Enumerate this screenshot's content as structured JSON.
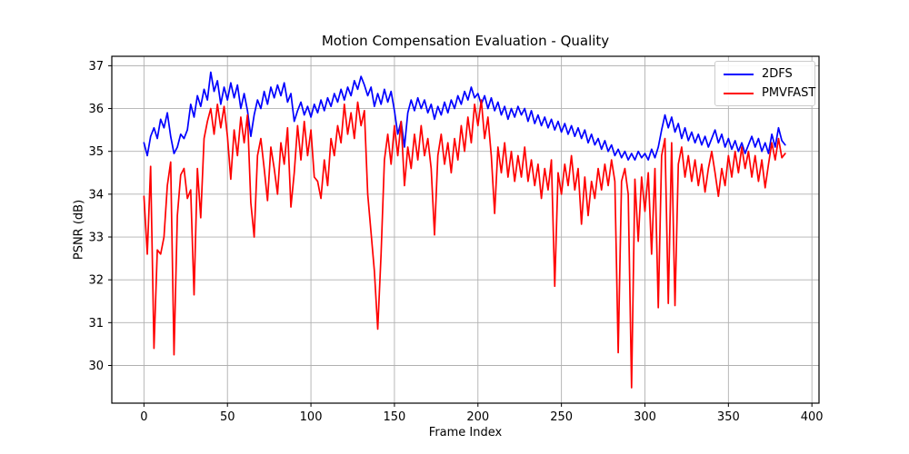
{
  "title": "Motion Compensation Evaluation - Quality",
  "chart_data": {
    "type": "line",
    "title": "Motion Compensation Evaluation - Quality",
    "xlabel": "Frame Index",
    "ylabel": "PSNR (dB)",
    "xlim": [
      -19.25,
      404.25
    ],
    "ylim": [
      29.12,
      37.22
    ],
    "xticks": [
      0,
      50,
      100,
      150,
      200,
      250,
      300,
      350,
      400
    ],
    "yticks": [
      30,
      31,
      32,
      33,
      34,
      35,
      36,
      37
    ],
    "grid": true,
    "grid_color": "#b0b0b0",
    "legend_position": "upper right",
    "x": [
      0,
      2,
      4,
      6,
      8,
      10,
      12,
      14,
      16,
      18,
      20,
      22,
      24,
      26,
      28,
      30,
      32,
      34,
      36,
      38,
      40,
      42,
      44,
      46,
      48,
      50,
      52,
      54,
      56,
      58,
      60,
      62,
      64,
      66,
      68,
      70,
      72,
      74,
      76,
      78,
      80,
      82,
      84,
      86,
      88,
      90,
      92,
      94,
      96,
      98,
      100,
      102,
      104,
      106,
      108,
      110,
      112,
      114,
      116,
      118,
      120,
      122,
      124,
      126,
      128,
      130,
      132,
      134,
      136,
      138,
      140,
      142,
      144,
      146,
      148,
      150,
      152,
      154,
      156,
      158,
      160,
      162,
      164,
      166,
      168,
      170,
      172,
      174,
      176,
      178,
      180,
      182,
      184,
      186,
      188,
      190,
      192,
      194,
      196,
      198,
      200,
      202,
      204,
      206,
      208,
      210,
      212,
      214,
      216,
      218,
      220,
      222,
      224,
      226,
      228,
      230,
      232,
      234,
      236,
      238,
      240,
      242,
      244,
      246,
      248,
      250,
      252,
      254,
      256,
      258,
      260,
      262,
      264,
      266,
      268,
      270,
      272,
      274,
      276,
      278,
      280,
      282,
      284,
      286,
      288,
      290,
      292,
      294,
      296,
      298,
      300,
      302,
      304,
      306,
      308,
      310,
      312,
      314,
      316,
      318,
      320,
      322,
      324,
      326,
      328,
      330,
      332,
      334,
      336,
      338,
      340,
      342,
      344,
      346,
      348,
      350,
      352,
      354,
      356,
      358,
      360,
      362,
      364,
      366,
      368,
      370,
      372,
      374,
      376,
      378,
      380,
      382,
      384
    ],
    "series": [
      {
        "name": "2DFS",
        "color": "#0000ff",
        "values": [
          35.2,
          34.9,
          35.35,
          35.55,
          35.3,
          35.75,
          35.55,
          35.9,
          35.35,
          34.95,
          35.1,
          35.4,
          35.3,
          35.5,
          36.1,
          35.8,
          36.3,
          36.05,
          36.45,
          36.2,
          36.85,
          36.4,
          36.65,
          36.1,
          36.5,
          36.2,
          36.6,
          36.25,
          36.55,
          36.0,
          36.35,
          35.95,
          35.35,
          35.85,
          36.2,
          36.0,
          36.4,
          36.1,
          36.5,
          36.25,
          36.55,
          36.3,
          36.6,
          36.15,
          36.35,
          35.7,
          35.95,
          36.15,
          35.85,
          36.05,
          35.8,
          36.1,
          35.9,
          36.2,
          35.95,
          36.25,
          36.05,
          36.35,
          36.15,
          36.45,
          36.2,
          36.5,
          36.3,
          36.65,
          36.45,
          36.75,
          36.55,
          36.3,
          36.5,
          36.05,
          36.35,
          36.1,
          36.45,
          36.15,
          36.4,
          35.95,
          35.4,
          35.7,
          35.1,
          35.9,
          36.2,
          35.95,
          36.25,
          36.0,
          36.2,
          35.9,
          36.1,
          35.75,
          36.05,
          35.85,
          36.15,
          35.9,
          36.2,
          36.0,
          36.3,
          36.1,
          36.4,
          36.2,
          36.5,
          36.25,
          36.35,
          36.1,
          36.3,
          36.0,
          36.25,
          35.95,
          36.15,
          35.85,
          36.05,
          35.75,
          36.0,
          35.8,
          36.05,
          35.85,
          36.0,
          35.7,
          35.95,
          35.65,
          35.85,
          35.6,
          35.8,
          35.55,
          35.75,
          35.5,
          35.7,
          35.45,
          35.65,
          35.4,
          35.6,
          35.35,
          35.55,
          35.3,
          35.5,
          35.2,
          35.4,
          35.15,
          35.3,
          35.05,
          35.25,
          35.0,
          35.15,
          34.9,
          35.05,
          34.85,
          35.0,
          34.8,
          34.95,
          34.8,
          35.0,
          34.85,
          34.95,
          34.8,
          35.05,
          34.85,
          35.1,
          35.5,
          35.85,
          35.55,
          35.8,
          35.45,
          35.65,
          35.3,
          35.55,
          35.25,
          35.45,
          35.2,
          35.4,
          35.15,
          35.35,
          35.1,
          35.3,
          35.5,
          35.2,
          35.4,
          35.1,
          35.3,
          35.05,
          35.25,
          35.0,
          35.2,
          34.95,
          35.15,
          35.35,
          35.1,
          35.3,
          35.0,
          35.2,
          34.95,
          35.4,
          35.1,
          35.55,
          35.25,
          35.15
        ]
      },
      {
        "name": "PMVFAST",
        "color": "#ff0000",
        "values": [
          33.95,
          32.6,
          34.65,
          30.4,
          32.7,
          32.6,
          33.0,
          34.2,
          34.75,
          30.25,
          33.5,
          34.45,
          34.6,
          33.9,
          34.1,
          31.65,
          34.6,
          33.45,
          35.3,
          35.7,
          36.0,
          35.4,
          36.1,
          35.55,
          36.05,
          35.35,
          34.35,
          35.5,
          34.9,
          35.8,
          35.2,
          35.85,
          33.8,
          33.0,
          34.9,
          35.3,
          34.6,
          33.85,
          35.1,
          34.6,
          34.0,
          35.2,
          34.7,
          35.55,
          33.7,
          34.5,
          35.6,
          34.8,
          35.7,
          34.9,
          35.5,
          34.4,
          34.3,
          33.9,
          34.8,
          34.2,
          35.3,
          34.9,
          35.6,
          35.2,
          36.1,
          35.4,
          35.9,
          35.3,
          36.15,
          35.6,
          35.95,
          34.0,
          33.1,
          32.2,
          30.85,
          32.6,
          34.8,
          35.4,
          34.7,
          35.6,
          34.9,
          35.7,
          34.2,
          35.1,
          34.6,
          35.4,
          34.8,
          35.6,
          34.9,
          35.3,
          34.6,
          33.05,
          34.9,
          35.4,
          34.7,
          35.2,
          34.5,
          35.3,
          34.8,
          35.6,
          35.0,
          35.8,
          35.2,
          36.1,
          35.6,
          36.2,
          35.3,
          35.8,
          34.9,
          33.55,
          35.1,
          34.5,
          35.2,
          34.4,
          35.0,
          34.3,
          34.9,
          34.4,
          35.1,
          34.3,
          34.8,
          34.2,
          34.7,
          33.9,
          34.6,
          34.1,
          34.8,
          31.85,
          34.5,
          34.0,
          34.7,
          34.2,
          34.9,
          34.1,
          34.6,
          33.3,
          34.4,
          33.5,
          34.3,
          33.9,
          34.6,
          34.1,
          34.7,
          34.2,
          34.8,
          34.3,
          30.3,
          34.3,
          34.6,
          34.0,
          29.48,
          34.35,
          32.9,
          34.4,
          33.6,
          34.5,
          32.6,
          34.6,
          31.35,
          34.9,
          35.3,
          31.45,
          35.2,
          31.4,
          34.7,
          35.1,
          34.4,
          34.9,
          34.3,
          34.8,
          34.2,
          34.7,
          34.05,
          34.6,
          35.0,
          34.5,
          33.95,
          34.6,
          34.2,
          34.9,
          34.4,
          35.0,
          34.5,
          35.1,
          34.6,
          35.0,
          34.4,
          34.9,
          34.3,
          34.8,
          34.15,
          34.7,
          35.2,
          34.8,
          35.3,
          34.85,
          34.95
        ]
      }
    ]
  }
}
